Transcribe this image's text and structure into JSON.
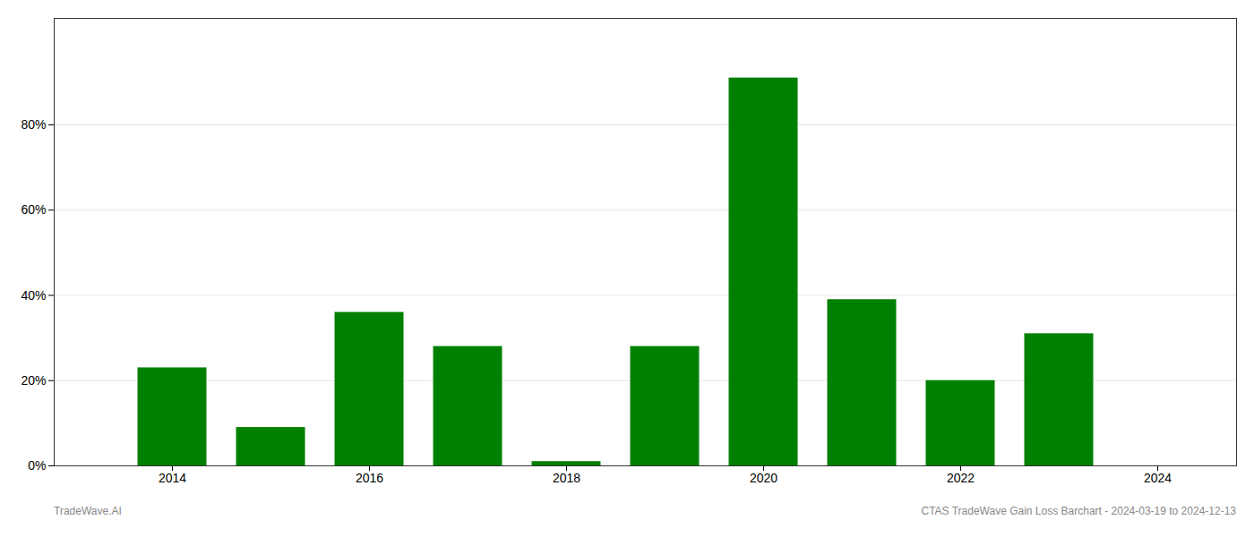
{
  "chart_data": {
    "type": "bar",
    "x": [
      2014,
      2015,
      2016,
      2017,
      2018,
      2019,
      2020,
      2021,
      2022,
      2023
    ],
    "values": [
      0.23,
      0.09,
      0.36,
      0.28,
      0.01,
      0.28,
      0.91,
      0.39,
      0.2,
      0.31
    ],
    "color": "#008000",
    "xlim": [
      2012.8,
      2024.8
    ],
    "xticks": [
      2014,
      2016,
      2018,
      2020,
      2022,
      2024
    ],
    "ylim": [
      0,
      1.05
    ],
    "yticks": [
      {
        "value": 0.0,
        "label": "0%"
      },
      {
        "value": 0.2,
        "label": "20%"
      },
      {
        "value": 0.4,
        "label": "40%"
      },
      {
        "value": 0.6,
        "label": "60%"
      },
      {
        "value": 0.8,
        "label": "80%"
      }
    ],
    "grid": true,
    "annotations": [
      "TradeWave.AI",
      "CTAS TradeWave Gain Loss Barchart - 2024-03-19 to 2024-12-13"
    ]
  }
}
